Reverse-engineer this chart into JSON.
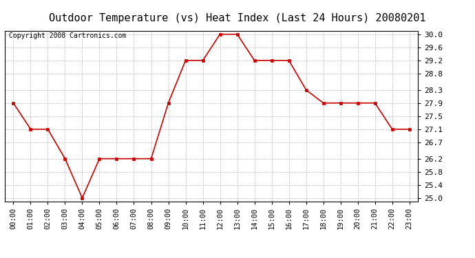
{
  "title": "Outdoor Temperature (vs) Heat Index (Last 24 Hours) 20080201",
  "copyright": "Copyright 2008 Cartronics.com",
  "x_labels": [
    "00:00",
    "01:00",
    "02:00",
    "03:00",
    "04:00",
    "05:00",
    "06:00",
    "07:00",
    "08:00",
    "09:00",
    "10:00",
    "11:00",
    "12:00",
    "13:00",
    "14:00",
    "15:00",
    "16:00",
    "17:00",
    "18:00",
    "19:00",
    "20:00",
    "21:00",
    "22:00",
    "23:00"
  ],
  "y_values": [
    27.9,
    27.1,
    27.1,
    26.2,
    25.0,
    26.2,
    26.2,
    26.2,
    26.2,
    27.9,
    29.2,
    29.2,
    30.0,
    30.0,
    29.2,
    29.2,
    29.2,
    28.3,
    27.9,
    27.9,
    27.9,
    27.9,
    27.1,
    27.1
  ],
  "ylim": [
    25.0,
    30.0
  ],
  "yticks": [
    25.0,
    25.4,
    25.8,
    26.2,
    26.7,
    27.1,
    27.5,
    27.9,
    28.3,
    28.8,
    29.2,
    29.6,
    30.0
  ],
  "line_color": "#cc0000",
  "marker": "s",
  "marker_color": "#cc0000",
  "marker_size": 3,
  "bg_color": "#ffffff",
  "plot_bg_color": "#ffffff",
  "grid_color": "#bbbbbb",
  "title_fontsize": 11,
  "copyright_fontsize": 7,
  "tick_fontsize": 8,
  "xtick_fontsize": 7.5
}
